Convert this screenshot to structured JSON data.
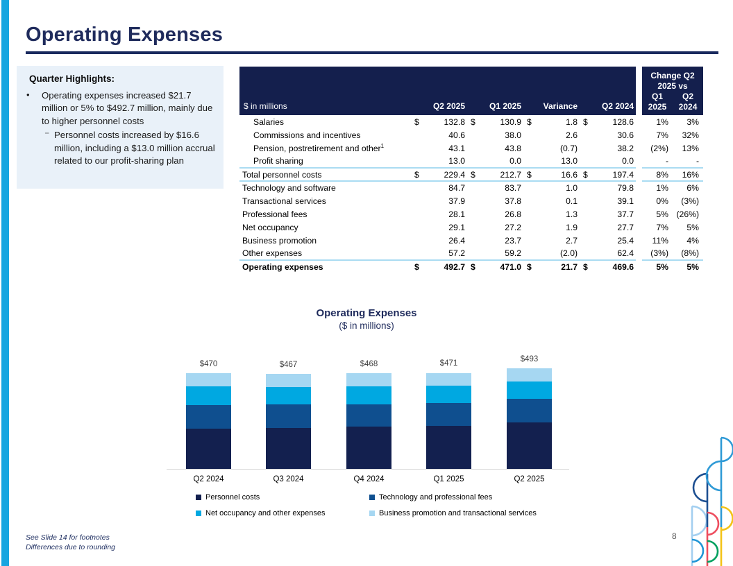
{
  "slide": {
    "title": "Operating Expenses",
    "page_number": "8"
  },
  "highlights": {
    "heading": "Quarter Highlights:",
    "bullet_marker": "•",
    "bullet": "Operating expenses increased $21.7 million or 5% to $492.7 million, mainly due to higher personnel costs",
    "sub_bullet_marker": "⁻",
    "sub_bullet": "Personnel costs increased by $16.6 million, including a $13.0 million accrual related to our profit-sharing plan"
  },
  "table": {
    "unit_label": "$ in millions",
    "period_headers": [
      "Q2 2025",
      "Q1 2025",
      "Variance",
      "Q2 2024"
    ],
    "change_header": {
      "line1": "Change Q2",
      "line2": "2025 vs",
      "col1_top": "Q1",
      "col2_top": "Q2",
      "col1_bottom": "2025",
      "col2_bottom": "2024"
    },
    "rows": [
      {
        "label": "Salaries",
        "indent": true,
        "dollar": true,
        "values": [
          "132.8",
          "130.9",
          "1.8",
          "128.6"
        ],
        "changes": [
          "1%",
          "3%"
        ]
      },
      {
        "label": "Commissions and incentives",
        "indent": true,
        "values": [
          "40.6",
          "38.0",
          "2.6",
          "30.6"
        ],
        "changes": [
          "7%",
          "32%"
        ]
      },
      {
        "label": "Pension, postretirement and other",
        "label_sup": "1",
        "indent": true,
        "values": [
          "43.1",
          "43.8",
          "(0.7)",
          "38.2"
        ],
        "changes": [
          "(2%)",
          "13%"
        ]
      },
      {
        "label": "Profit sharing",
        "indent": true,
        "values": [
          "13.0",
          "0.0",
          "13.0",
          "0.0"
        ],
        "changes": [
          "-",
          "-"
        ],
        "sep_below": true
      },
      {
        "label": "Total personnel costs",
        "dollar": true,
        "values": [
          "229.4",
          "212.7",
          "16.6",
          "197.4"
        ],
        "changes": [
          "8%",
          "16%"
        ],
        "sep_below": true
      },
      {
        "label": "Technology and software",
        "values": [
          "84.7",
          "83.7",
          "1.0",
          "79.8"
        ],
        "changes": [
          "1%",
          "6%"
        ]
      },
      {
        "label": "Transactional services",
        "values": [
          "37.9",
          "37.8",
          "0.1",
          "39.1"
        ],
        "changes": [
          "0%",
          "(3%)"
        ]
      },
      {
        "label": "Professional fees",
        "values": [
          "28.1",
          "26.8",
          "1.3",
          "37.7"
        ],
        "changes": [
          "5%",
          "(26%)"
        ]
      },
      {
        "label": "Net occupancy",
        "values": [
          "29.1",
          "27.2",
          "1.9",
          "27.7"
        ],
        "changes": [
          "7%",
          "5%"
        ]
      },
      {
        "label": "Business promotion",
        "values": [
          "26.4",
          "23.7",
          "2.7",
          "25.4"
        ],
        "changes": [
          "11%",
          "4%"
        ]
      },
      {
        "label": "Other expenses",
        "values": [
          "57.2",
          "59.2",
          "(2.0)",
          "62.4"
        ],
        "changes": [
          "(3%)",
          "(8%)"
        ],
        "sep_below": true
      },
      {
        "label": "Operating expenses",
        "bold": true,
        "dollar": true,
        "values": [
          "492.7",
          "471.0",
          "21.7",
          "469.6"
        ],
        "changes": [
          "5%",
          "5%"
        ]
      }
    ]
  },
  "chart_data": {
    "type": "bar",
    "stacked": true,
    "title": "Operating Expenses",
    "subtitle": "($ in millions)",
    "categories": [
      "Q2 2024",
      "Q3 2024",
      "Q4 2024",
      "Q1 2025",
      "Q2 2025"
    ],
    "totals_labels": [
      "$470",
      "$467",
      "$468",
      "$471",
      "$493"
    ],
    "totals": [
      470,
      467,
      468,
      471,
      493
    ],
    "series": [
      {
        "name": "Personnel costs",
        "color": "#13204f",
        "values": [
          197.4,
          200,
          206,
          212.7,
          229.4
        ]
      },
      {
        "name": "Technology and professional fees",
        "color": "#0f4f8f",
        "values": [
          117.5,
          116,
          111,
          110.5,
          112.8
        ]
      },
      {
        "name": "Net occupancy and other expenses",
        "color": "#00a8e1",
        "values": [
          90.1,
          87,
          87,
          86.4,
          86.3
        ]
      },
      {
        "name": "Business promotion and transactional services",
        "color": "#a6d7f2",
        "values": [
          64.5,
          64,
          64,
          61.5,
          64.3
        ]
      }
    ],
    "ylim": [
      0,
      500
    ],
    "gridlines": false,
    "legend_position": "bottom"
  },
  "footnotes": {
    "line1": "See Slide 14 for footnotes",
    "line2": "Differences due to rounding"
  },
  "colors": {
    "accent_cyan": "#16a5e0",
    "title_navy": "#1f2b5c",
    "table_header_bg": "#141f4d",
    "separator_blue": "#aadcf2",
    "highlight_bg": "#e9f1f9"
  }
}
